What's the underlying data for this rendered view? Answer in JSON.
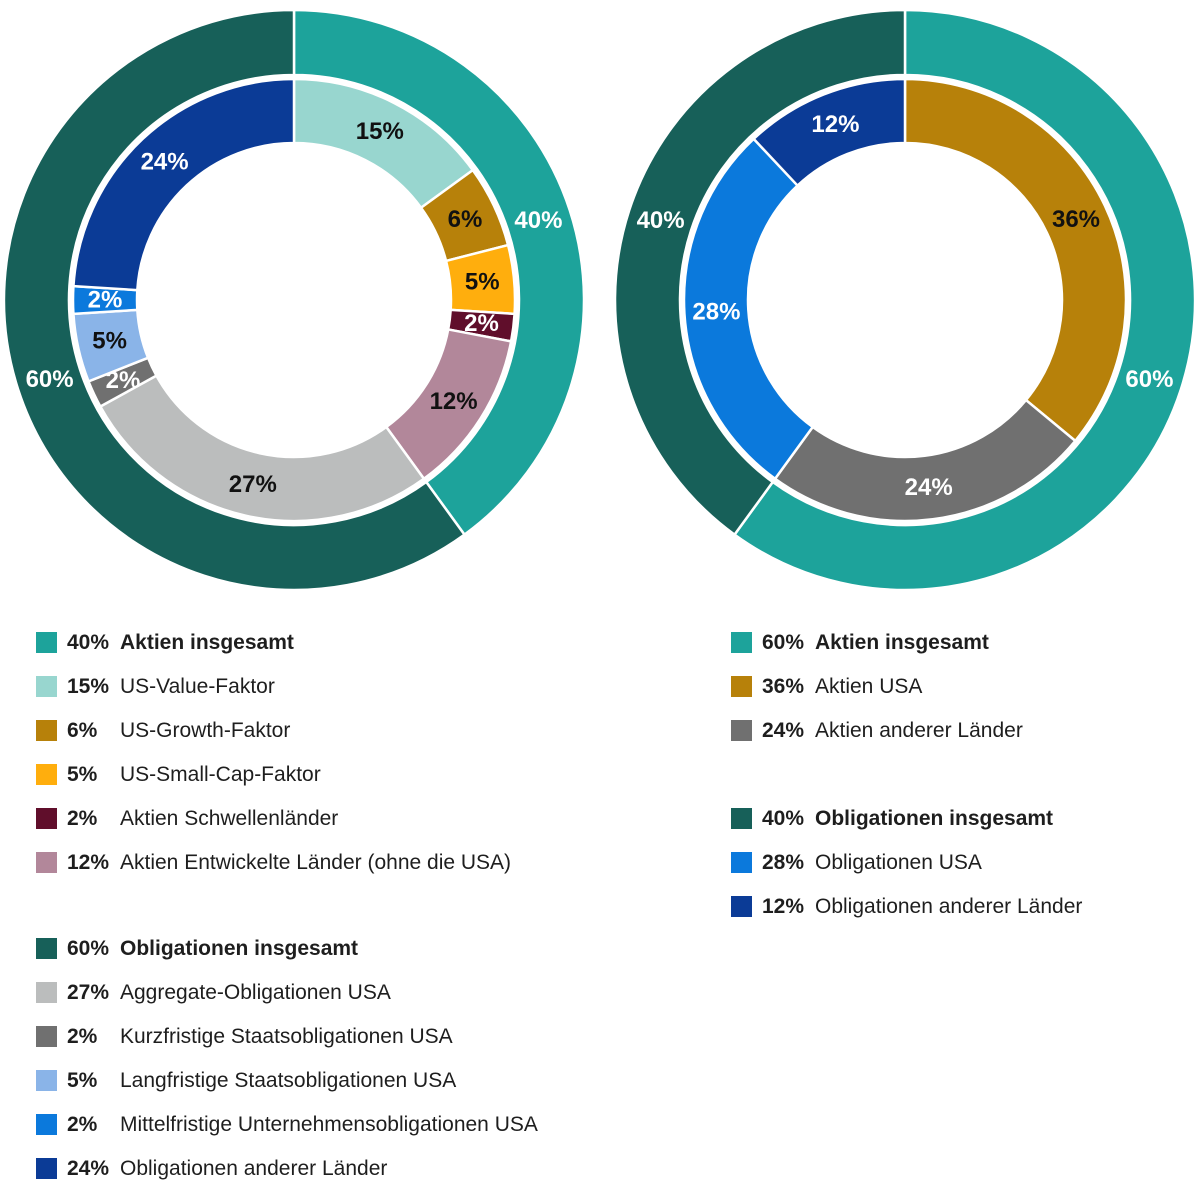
{
  "chart_data": [
    {
      "type": "donut",
      "position": "left",
      "units": "%",
      "legend_position": "below",
      "rings": {
        "outer": [
          {
            "value": 40,
            "display": "40%",
            "label": "Aktien insgesamt",
            "color": "#1DA39B",
            "label_color": "#FFFFFF"
          },
          {
            "value": 60,
            "display": "60%",
            "label": "Obligationen insgesamt",
            "color": "#176059",
            "label_color": "#FFFFFF"
          }
        ],
        "inner": [
          {
            "value": 15,
            "display": "15%",
            "label": "US-Value-Faktor",
            "color": "#98D6CF",
            "label_color": "#111111"
          },
          {
            "value": 6,
            "display": "6%",
            "label": "US-Growth-Faktor",
            "color": "#B7810A",
            "label_color": "#111111"
          },
          {
            "value": 5,
            "display": "5%",
            "label": "US-Small-Cap-Faktor",
            "color": "#FFAE0D",
            "label_color": "#111111"
          },
          {
            "value": 2,
            "display": "2%",
            "label": "Aktien Schwellenländer",
            "color": "#600E2B",
            "label_color": "#FFFFFF"
          },
          {
            "value": 12,
            "display": "12%",
            "label": "Aktien Entwickelte Länder (ohne die USA)",
            "color": "#B2879A",
            "label_color": "#111111"
          },
          {
            "value": 27,
            "display": "27%",
            "label": "Aggregate-Obligationen USA",
            "color": "#BBBDBD",
            "label_color": "#111111"
          },
          {
            "value": 2,
            "display": "2%",
            "label": "Kurzfristige Staatsobligationen USA",
            "color": "#707070",
            "label_color": "#FFFFFF"
          },
          {
            "value": 5,
            "display": "5%",
            "label": "Langfristige Staatsobligationen USA",
            "color": "#8AB4E8",
            "label_color": "#111111"
          },
          {
            "value": 2,
            "display": "2%",
            "label": "Mittelfristige Unternehmensobligationen USA",
            "color": "#0B79DC",
            "label_color": "#FFFFFF"
          },
          {
            "value": 24,
            "display": "24%",
            "label": "Obligationen anderer Länder",
            "color": "#0B3B96",
            "label_color": "#FFFFFF"
          }
        ]
      },
      "legend_groups": [
        [
          {
            "pct": "40%",
            "label": "Aktien insgesamt",
            "color": "#1DA39B",
            "bold": true
          },
          {
            "pct": "15%",
            "label": "US-Value-Faktor",
            "color": "#98D6CF",
            "bold": false
          },
          {
            "pct": "6%",
            "label": "US-Growth-Faktor",
            "color": "#B7810A",
            "bold": false
          },
          {
            "pct": "5%",
            "label": "US-Small-Cap-Faktor",
            "color": "#FFAE0D",
            "bold": false
          },
          {
            "pct": "2%",
            "label": "Aktien Schwellenländer",
            "color": "#600E2B",
            "bold": false
          },
          {
            "pct": "12%",
            "label": "Aktien Entwickelte Länder (ohne die USA)",
            "color": "#B2879A",
            "bold": false
          }
        ],
        [
          {
            "pct": "60%",
            "label": "Obligationen insgesamt",
            "color": "#176059",
            "bold": true
          },
          {
            "pct": "27%",
            "label": "Aggregate-Obligationen USA",
            "color": "#BBBDBD",
            "bold": false
          },
          {
            "pct": "2%",
            "label": "Kurzfristige Staatsobligationen USA",
            "color": "#707070",
            "bold": false
          },
          {
            "pct": "5%",
            "label": "Langfristige Staatsobligationen USA",
            "color": "#8AB4E8",
            "bold": false
          },
          {
            "pct": "2%",
            "label": "Mittelfristige Unternehmensobligationen USA",
            "color": "#0B79DC",
            "bold": false
          },
          {
            "pct": "24%",
            "label": "Obligationen anderer Länder",
            "color": "#0B3B96",
            "bold": false
          }
        ]
      ]
    },
    {
      "type": "donut",
      "position": "right",
      "units": "%",
      "legend_position": "below",
      "rings": {
        "outer": [
          {
            "value": 60,
            "display": "60%",
            "label": "Aktien insgesamt",
            "color": "#1DA39B",
            "label_color": "#FFFFFF"
          },
          {
            "value": 40,
            "display": "40%",
            "label": "Obligationen insgesamt",
            "color": "#176059",
            "label_color": "#FFFFFF"
          }
        ],
        "inner": [
          {
            "value": 36,
            "display": "36%",
            "label": "Aktien USA",
            "color": "#B7810A",
            "label_color": "#111111"
          },
          {
            "value": 24,
            "display": "24%",
            "label": "Aktien anderer Länder",
            "color": "#707070",
            "label_color": "#FFFFFF"
          },
          {
            "value": 28,
            "display": "28%",
            "label": "Obligationen USA",
            "color": "#0B79DC",
            "label_color": "#FFFFFF"
          },
          {
            "value": 12,
            "display": "12%",
            "label": "Obligationen anderer Länder",
            "color": "#0B3B96",
            "label_color": "#FFFFFF"
          }
        ]
      },
      "legend_groups": [
        [
          {
            "pct": "60%",
            "label": "Aktien insgesamt",
            "color": "#1DA39B",
            "bold": true
          },
          {
            "pct": "36%",
            "label": "Aktien USA",
            "color": "#B7810A",
            "bold": false
          },
          {
            "pct": "24%",
            "label": "Aktien anderer Länder",
            "color": "#707070",
            "bold": false
          }
        ],
        [
          {
            "pct": "40%",
            "label": "Obligationen insgesamt",
            "color": "#176059",
            "bold": true
          },
          {
            "pct": "28%",
            "label": "Obligationen USA",
            "color": "#0B79DC",
            "bold": false
          },
          {
            "pct": "12%",
            "label": "Obligationen anderer Länder",
            "color": "#0B3B96",
            "bold": false
          }
        ]
      ]
    }
  ]
}
